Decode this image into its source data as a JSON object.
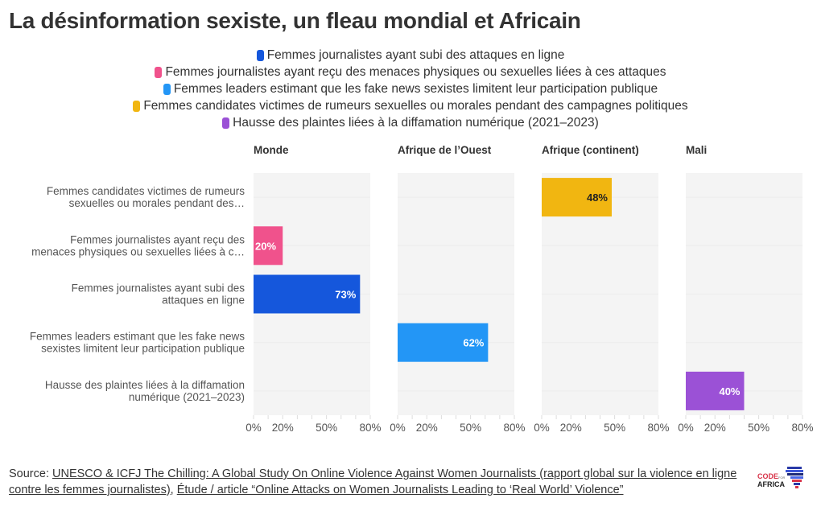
{
  "title": "La désinformation sexiste, un fleau mondial et Africain",
  "legend": [
    {
      "label": "Femmes journalistes ayant subi des attaques en ligne",
      "color": "#1557dc"
    },
    {
      "label": "Femmes journalistes ayant reçu des menaces physiques ou sexuelles liées à ces attaques",
      "color": "#f0528c"
    },
    {
      "label": "Femmes leaders estimant que les fake news sexistes limitent leur participation publique",
      "color": "#2396f6"
    },
    {
      "label": "Femmes candidates victimes de rumeurs sexuelles ou morales pendant des campagnes politiques",
      "color": "#f1b611"
    },
    {
      "label": "Hausse des plaintes liées à la diffamation numérique (2021–2023)",
      "color": "#9b51d6"
    }
  ],
  "chart_data": {
    "type": "bar",
    "orientation": "horizontal",
    "title": "La désinformation sexiste, un fleau mondial et Africain",
    "panels": [
      "Monde",
      "Afrique de l’Ouest",
      "Afrique (continent)",
      "Mali"
    ],
    "categories": [
      "Femmes candidates victimes de rumeurs sexuelles ou morales pendant des…",
      "Femmes journalistes ayant reçu des menaces physiques ou sexuelles liées à c…",
      "Femmes journalistes ayant subi des attaques en ligne",
      "Femmes leaders estimant que les fake news sexistes limitent leur participation publique",
      "Hausse des plaintes liées à la diffamation numérique (2021–2023)"
    ],
    "category_lines": [
      [
        "Femmes candidates victimes de rumeurs",
        "sexuelles ou morales pendant des…"
      ],
      [
        "Femmes journalistes ayant reçu des",
        "menaces physiques ou sexuelles liées à c…"
      ],
      [
        "Femmes journalistes ayant subi des",
        "attaques en ligne"
      ],
      [
        "Femmes leaders estimant que les fake news",
        "sexistes limitent leur participation publique"
      ],
      [
        "Hausse des plaintes liées à la diffamation",
        "numérique (2021–2023)"
      ]
    ],
    "category_colors": [
      "#f1b611",
      "#f0528c",
      "#1557dc",
      "#2396f6",
      "#9b51d6"
    ],
    "label_colors": [
      "#222222",
      "#ffffff",
      "#ffffff",
      "#ffffff",
      "#ffffff"
    ],
    "series": [
      {
        "name": "Monde",
        "values": [
          null,
          20,
          73,
          null,
          null
        ]
      },
      {
        "name": "Afrique de l’Ouest",
        "values": [
          null,
          null,
          null,
          62,
          null
        ]
      },
      {
        "name": "Afrique (continent)",
        "values": [
          48,
          null,
          null,
          null,
          null
        ]
      },
      {
        "name": "Mali",
        "values": [
          null,
          null,
          null,
          null,
          40
        ]
      }
    ],
    "xlim": [
      0,
      80
    ],
    "x_ticks": [
      0,
      10,
      20,
      30,
      40,
      50,
      60,
      70,
      80
    ],
    "x_tick_labels": [
      {
        "value": 0,
        "label": "0%"
      },
      {
        "value": 20,
        "label": "20%"
      },
      {
        "value": 50,
        "label": "50%"
      },
      {
        "value": 80,
        "label": "80%"
      }
    ],
    "value_suffix": "%",
    "xlabel": "",
    "ylabel": "",
    "grid": true
  },
  "footer": {
    "source_prefix": "Source: ",
    "links": [
      "UNESCO & ICFJ The Chilling: A Global Study On Online Violence Against Women Journalists (rapport global sur la violence en ligne contre les femmes journalistes)",
      "Étude / article “Online Attacks on Women Journalists Leading to ‘Real World’ Violence”"
    ],
    "separator": ", ",
    "logo_line1": "CODE",
    "logo_small": "FOR",
    "logo_line2": "AFRICA"
  }
}
